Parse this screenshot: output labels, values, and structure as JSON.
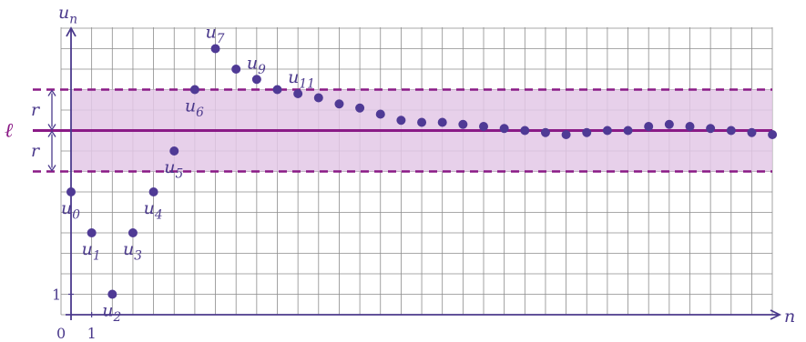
{
  "chart_data": {
    "type": "scatter",
    "xlabel": "n",
    "ylabel": "u",
    "ylabel_sub": "n",
    "x_ticks": [
      {
        "value": 0,
        "label": "0"
      },
      {
        "value": 1,
        "label": "1"
      }
    ],
    "y_ticks": [
      {
        "value": 1,
        "label": "1"
      }
    ],
    "xlim": [
      0,
      34
    ],
    "ylim": [
      0,
      14
    ],
    "grid": true,
    "limit": {
      "value": 9,
      "label": "ℓ"
    },
    "band": {
      "radius": 2,
      "label": "r"
    },
    "points": [
      {
        "x": 0,
        "y": 6
      },
      {
        "x": 1,
        "y": 4
      },
      {
        "x": 2,
        "y": 1
      },
      {
        "x": 3,
        "y": 4
      },
      {
        "x": 4,
        "y": 6
      },
      {
        "x": 5,
        "y": 8
      },
      {
        "x": 6,
        "y": 11
      },
      {
        "x": 7,
        "y": 13
      },
      {
        "x": 8,
        "y": 12
      },
      {
        "x": 9,
        "y": 11.5
      },
      {
        "x": 10,
        "y": 11
      },
      {
        "x": 11,
        "y": 10.8
      },
      {
        "x": 12,
        "y": 10.6
      },
      {
        "x": 13,
        "y": 10.3
      },
      {
        "x": 14,
        "y": 10.1
      },
      {
        "x": 15,
        "y": 9.8
      },
      {
        "x": 16,
        "y": 9.5
      },
      {
        "x": 17,
        "y": 9.4
      },
      {
        "x": 18,
        "y": 9.4
      },
      {
        "x": 19,
        "y": 9.3
      },
      {
        "x": 20,
        "y": 9.2
      },
      {
        "x": 21,
        "y": 9.1
      },
      {
        "x": 22,
        "y": 9.0
      },
      {
        "x": 23,
        "y": 8.9
      },
      {
        "x": 24,
        "y": 8.8
      },
      {
        "x": 25,
        "y": 8.9
      },
      {
        "x": 26,
        "y": 9.0
      },
      {
        "x": 27,
        "y": 9.0
      },
      {
        "x": 28,
        "y": 9.2
      },
      {
        "x": 29,
        "y": 9.3
      },
      {
        "x": 30,
        "y": 9.2
      },
      {
        "x": 31,
        "y": 9.1
      },
      {
        "x": 32,
        "y": 9.0
      },
      {
        "x": 33,
        "y": 8.9
      },
      {
        "x": 34,
        "y": 8.8
      }
    ],
    "point_labels": [
      {
        "index": 0,
        "base": "u",
        "sub": "0",
        "pos": "below"
      },
      {
        "index": 1,
        "base": "u",
        "sub": "1",
        "pos": "below"
      },
      {
        "index": 2,
        "base": "u",
        "sub": "2",
        "pos": "below"
      },
      {
        "index": 3,
        "base": "u",
        "sub": "3",
        "pos": "below"
      },
      {
        "index": 4,
        "base": "u",
        "sub": "4",
        "pos": "below"
      },
      {
        "index": 5,
        "base": "u",
        "sub": "5",
        "pos": "below"
      },
      {
        "index": 6,
        "base": "u",
        "sub": "6",
        "pos": "below"
      },
      {
        "index": 7,
        "base": "u",
        "sub": "7",
        "pos": "above"
      },
      {
        "index": 9,
        "base": "u",
        "sub": "9",
        "pos": "above"
      },
      {
        "index": 11,
        "base": "u",
        "sub": "11",
        "pos": "above"
      }
    ],
    "colors": {
      "axis": "#4b3a8c",
      "grid": "#8c8c8c",
      "point": "#4f3a95",
      "band_fill": "#e3c8e6",
      "band_line": "#8a1a86",
      "limit_line": "#8a1a86",
      "limit_label": "#8a1a86",
      "annotation": "#4b3a8c"
    }
  }
}
